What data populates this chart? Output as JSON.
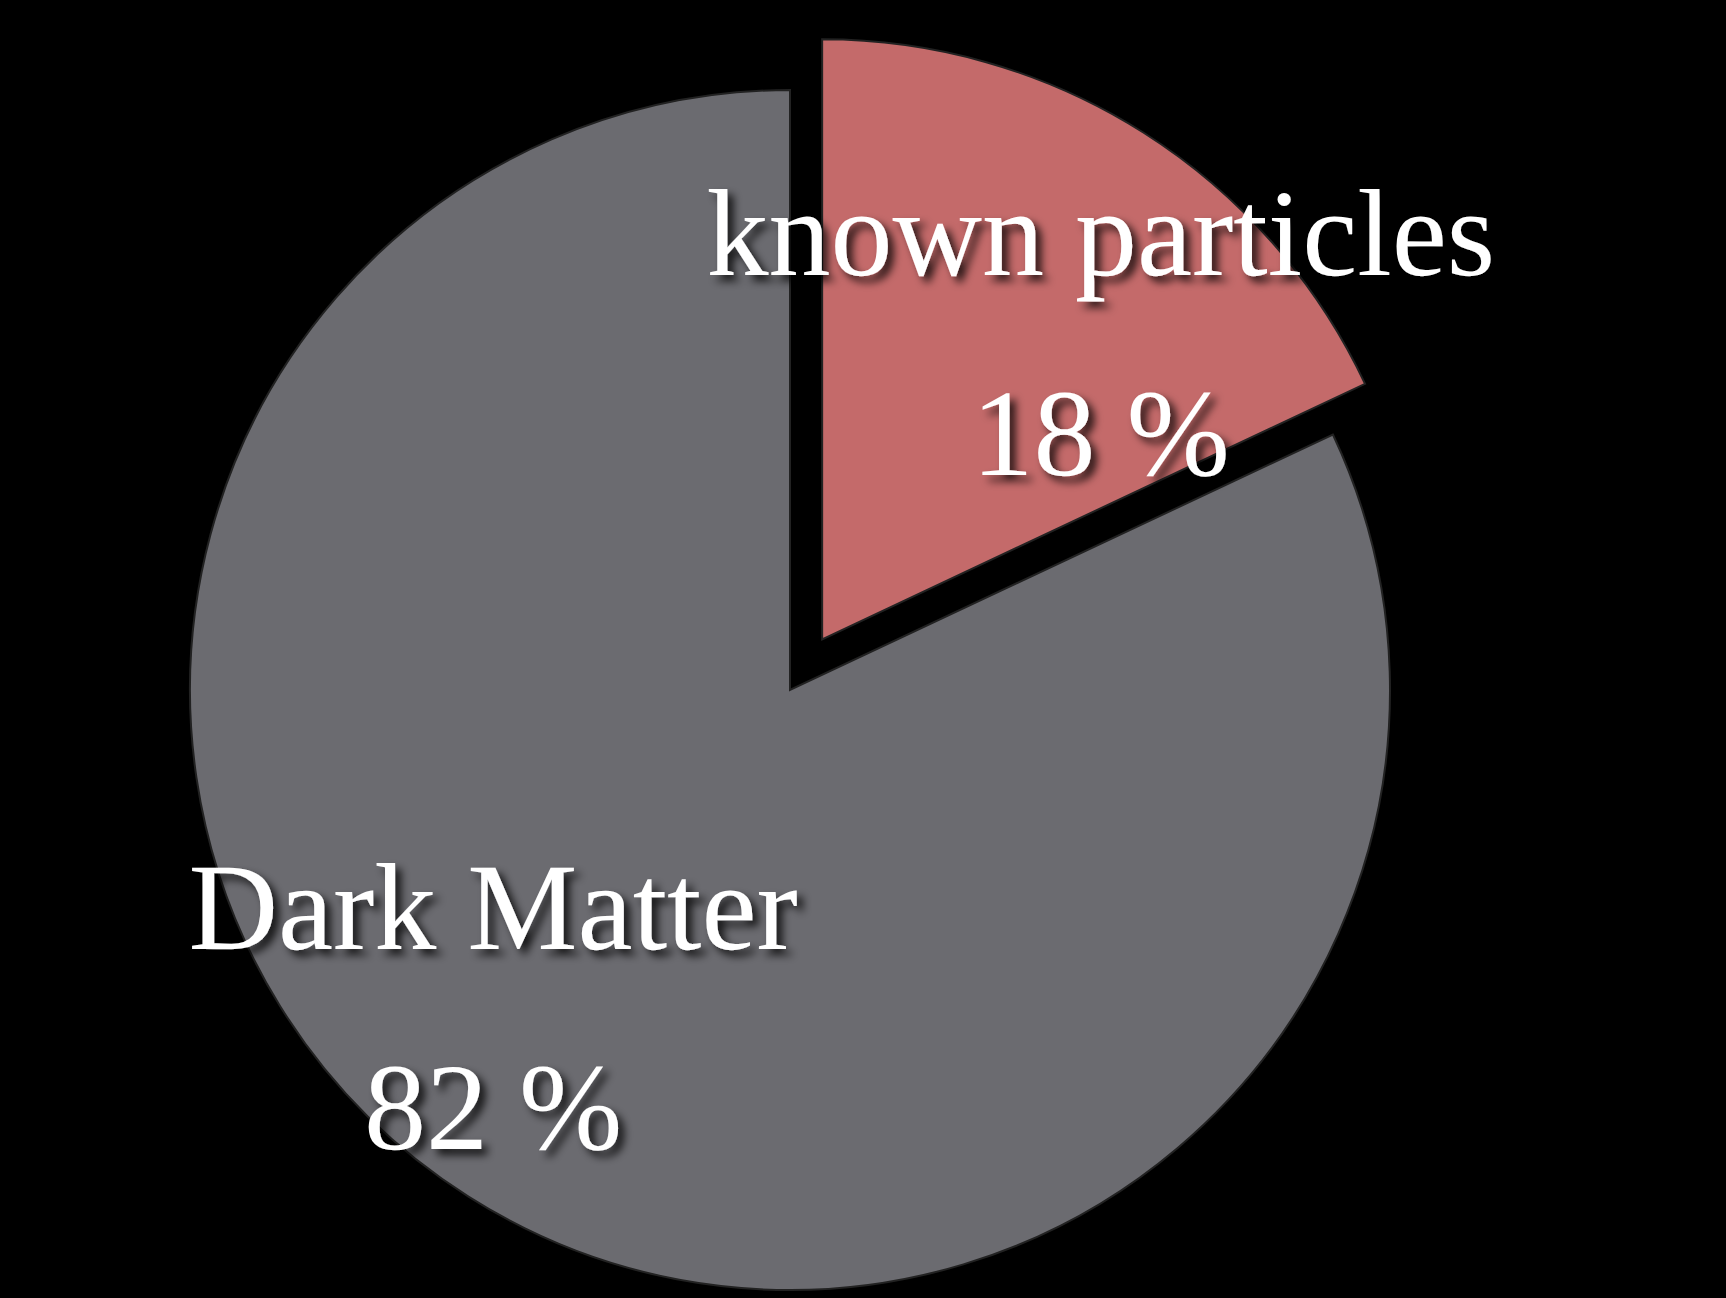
{
  "chart_data": {
    "type": "pie",
    "categories": [
      "known particles",
      "Dark Matter"
    ],
    "values": [
      18,
      82
    ],
    "colors": [
      "#c46a6a",
      "#6b6b70"
    ],
    "value_labels": [
      "18 %",
      "82 %"
    ]
  }
}
